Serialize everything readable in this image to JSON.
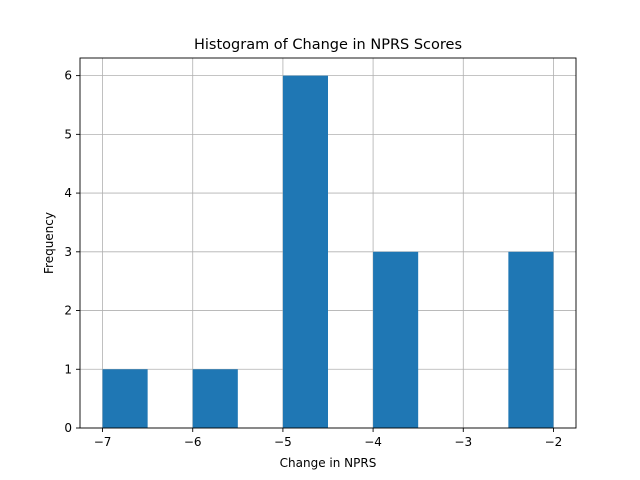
{
  "chart_data": {
    "type": "bar",
    "title": "Histogram of Change in NPRS Scores",
    "xlabel": "Change in NPRS",
    "ylabel": "Frequency",
    "xlim": [
      -7.25,
      -1.75
    ],
    "ylim": [
      0,
      6.3
    ],
    "xticks": [
      -7,
      -6,
      -5,
      -4,
      -3,
      -2
    ],
    "xtick_labels": [
      "−7",
      "−6",
      "−5",
      "−4",
      "−3",
      "−2"
    ],
    "yticks": [
      0,
      1,
      2,
      3,
      4,
      5,
      6
    ],
    "ytick_labels": [
      "0",
      "1",
      "2",
      "3",
      "4",
      "5",
      "6"
    ],
    "grid": true,
    "bar_color": "#1f77b4",
    "bins": [
      {
        "x0": -7.0,
        "x1": -6.5,
        "value": 1
      },
      {
        "x0": -6.5,
        "x1": -6.0,
        "value": 0
      },
      {
        "x0": -6.0,
        "x1": -5.5,
        "value": 1
      },
      {
        "x0": -5.5,
        "x1": -5.0,
        "value": 0
      },
      {
        "x0": -5.0,
        "x1": -4.5,
        "value": 6
      },
      {
        "x0": -4.5,
        "x1": -4.0,
        "value": 0
      },
      {
        "x0": -4.0,
        "x1": -3.5,
        "value": 3
      },
      {
        "x0": -3.5,
        "x1": -3.0,
        "value": 0
      },
      {
        "x0": -3.0,
        "x1": -2.5,
        "value": 0
      },
      {
        "x0": -2.5,
        "x1": -2.0,
        "value": 3
      }
    ]
  }
}
